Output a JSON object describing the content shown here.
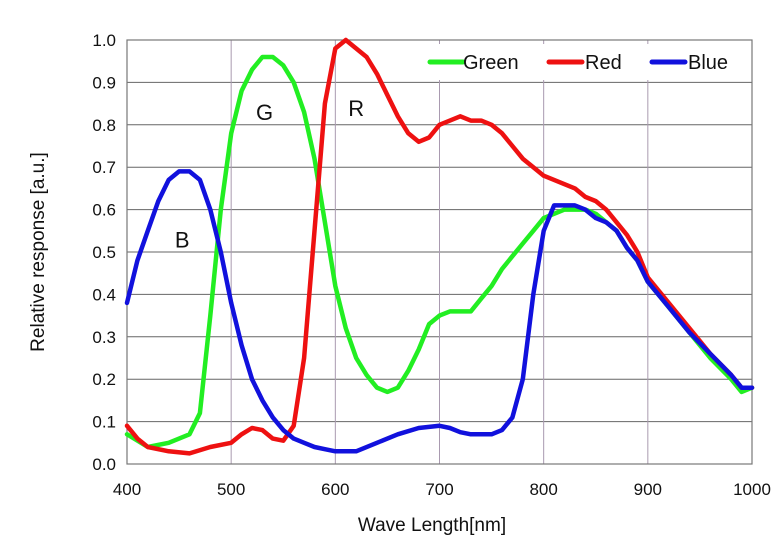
{
  "chart_data": {
    "type": "line",
    "title": "",
    "xlabel": "Wave Length[nm]",
    "ylabel": "Relative response [a.u.]",
    "xlim": [
      400,
      1000
    ],
    "ylim": [
      0.0,
      1.0
    ],
    "xticks": [
      "400",
      "500",
      "600",
      "700",
      "800",
      "900",
      "1000"
    ],
    "yticks": [
      "0.0",
      "0.1",
      "0.2",
      "0.3",
      "0.4",
      "0.5",
      "0.6",
      "0.7",
      "0.8",
      "0.9",
      "1.0"
    ],
    "grid": true,
    "legend_position": "top-right",
    "series": [
      {
        "name": "Green",
        "color": "#22ee22",
        "x": [
          400,
          420,
          440,
          460,
          470,
          480,
          490,
          500,
          510,
          520,
          530,
          540,
          550,
          560,
          570,
          580,
          590,
          600,
          610,
          620,
          630,
          640,
          650,
          660,
          670,
          680,
          690,
          700,
          710,
          720,
          730,
          740,
          750,
          760,
          770,
          780,
          790,
          800,
          810,
          820,
          830,
          840,
          850,
          860,
          870,
          880,
          890,
          900,
          920,
          940,
          960,
          980,
          990,
          1000
        ],
        "y": [
          0.07,
          0.04,
          0.05,
          0.07,
          0.12,
          0.35,
          0.6,
          0.78,
          0.88,
          0.93,
          0.96,
          0.96,
          0.94,
          0.9,
          0.83,
          0.72,
          0.57,
          0.42,
          0.32,
          0.25,
          0.21,
          0.18,
          0.17,
          0.18,
          0.22,
          0.27,
          0.33,
          0.35,
          0.36,
          0.36,
          0.36,
          0.39,
          0.42,
          0.46,
          0.49,
          0.52,
          0.55,
          0.58,
          0.59,
          0.6,
          0.6,
          0.6,
          0.59,
          0.57,
          0.55,
          0.51,
          0.48,
          0.43,
          0.37,
          0.31,
          0.25,
          0.2,
          0.17,
          0.18
        ]
      },
      {
        "name": "Red",
        "color": "#ee1111",
        "x": [
          400,
          410,
          420,
          440,
          460,
          480,
          500,
          510,
          520,
          530,
          540,
          550,
          560,
          570,
          580,
          590,
          600,
          610,
          620,
          630,
          640,
          650,
          660,
          670,
          680,
          690,
          700,
          710,
          720,
          730,
          740,
          750,
          760,
          770,
          780,
          790,
          800,
          810,
          820,
          830,
          840,
          850,
          860,
          870,
          880,
          890,
          900,
          920,
          940,
          960,
          980,
          990,
          1000
        ],
        "y": [
          0.09,
          0.06,
          0.04,
          0.03,
          0.025,
          0.04,
          0.05,
          0.07,
          0.085,
          0.08,
          0.06,
          0.055,
          0.09,
          0.25,
          0.55,
          0.85,
          0.98,
          1.0,
          0.98,
          0.96,
          0.92,
          0.87,
          0.82,
          0.78,
          0.76,
          0.77,
          0.8,
          0.81,
          0.82,
          0.81,
          0.81,
          0.8,
          0.78,
          0.75,
          0.72,
          0.7,
          0.68,
          0.67,
          0.66,
          0.65,
          0.63,
          0.62,
          0.6,
          0.57,
          0.54,
          0.5,
          0.44,
          0.38,
          0.32,
          0.26,
          0.21,
          0.18,
          0.18
        ]
      },
      {
        "name": "Blue",
        "color": "#1111dd",
        "x": [
          400,
          410,
          420,
          430,
          440,
          450,
          460,
          470,
          480,
          490,
          500,
          510,
          520,
          530,
          540,
          550,
          560,
          570,
          580,
          590,
          600,
          620,
          640,
          660,
          680,
          700,
          710,
          720,
          730,
          750,
          760,
          770,
          780,
          790,
          800,
          810,
          820,
          830,
          840,
          850,
          860,
          870,
          880,
          890,
          900,
          920,
          940,
          960,
          980,
          990,
          1000
        ],
        "y": [
          0.38,
          0.48,
          0.55,
          0.62,
          0.67,
          0.69,
          0.69,
          0.67,
          0.6,
          0.5,
          0.38,
          0.28,
          0.2,
          0.15,
          0.11,
          0.08,
          0.06,
          0.05,
          0.04,
          0.035,
          0.03,
          0.03,
          0.05,
          0.07,
          0.085,
          0.09,
          0.085,
          0.075,
          0.07,
          0.07,
          0.08,
          0.11,
          0.2,
          0.4,
          0.55,
          0.61,
          0.61,
          0.61,
          0.6,
          0.58,
          0.57,
          0.55,
          0.51,
          0.48,
          0.43,
          0.37,
          0.31,
          0.26,
          0.21,
          0.18,
          0.18
        ]
      }
    ],
    "annotations": [
      {
        "text": "B",
        "x": 453,
        "y": 0.53
      },
      {
        "text": "G",
        "x": 532,
        "y": 0.83
      },
      {
        "text": "R",
        "x": 620,
        "y": 0.84
      }
    ]
  }
}
